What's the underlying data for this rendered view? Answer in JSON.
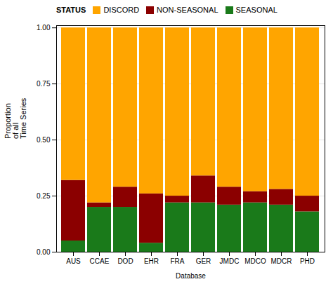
{
  "chart_data": {
    "type": "bar",
    "stacked": true,
    "xlabel": "Database",
    "ylabel": "Proportion\nof all\nTime Series",
    "legend_title": "STATUS",
    "categories": [
      "AUS",
      "CCAE",
      "DOD",
      "EHR",
      "FRA",
      "GER",
      "JMDC",
      "MDCO",
      "MDCR",
      "PHD"
    ],
    "series": [
      {
        "name": "SEASONAL",
        "color": "#1a7a1a",
        "values": [
          0.05,
          0.2,
          0.2,
          0.04,
          0.22,
          0.22,
          0.21,
          0.22,
          0.21,
          0.18
        ]
      },
      {
        "name": "NON-SEASONAL",
        "color": "#8b0000",
        "values": [
          0.27,
          0.02,
          0.09,
          0.22,
          0.03,
          0.12,
          0.08,
          0.05,
          0.07,
          0.07
        ]
      },
      {
        "name": "DISCORD",
        "color": "#ffa500",
        "values": [
          0.68,
          0.78,
          0.71,
          0.74,
          0.75,
          0.66,
          0.71,
          0.73,
          0.72,
          0.75
        ]
      }
    ],
    "ylim": [
      0,
      1.01
    ],
    "yticks": [
      {
        "value": 0,
        "label": "0.00"
      },
      {
        "value": 0.25,
        "label": "0.25"
      },
      {
        "value": 0.5,
        "label": "0.50"
      },
      {
        "value": 0.75,
        "label": "0.75"
      },
      {
        "value": 1,
        "label": "1.00"
      }
    ],
    "grid": true,
    "legend": "right"
  }
}
